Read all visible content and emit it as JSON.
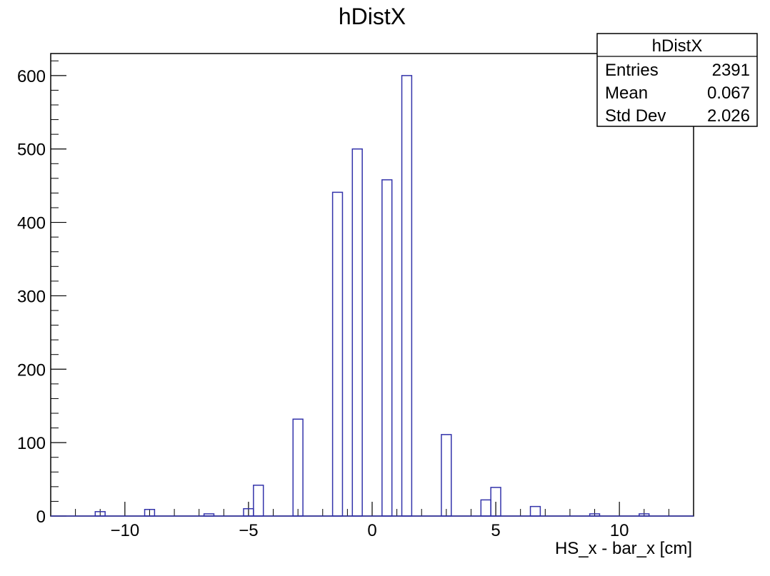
{
  "chart_data": {
    "type": "bar",
    "title": "hDistX",
    "xlabel": "HS_x - bar_x [cm]",
    "ylabel": "",
    "xlim": [
      -13,
      13
    ],
    "ylim": [
      0,
      630
    ],
    "x_ticks": [
      -10,
      -5,
      0,
      5,
      10
    ],
    "y_ticks": [
      0,
      100,
      200,
      300,
      400,
      500,
      600
    ],
    "x_tick_labels": [
      "−10",
      "−5",
      "0",
      "5",
      "10"
    ],
    "y_tick_labels": [
      "0",
      "100",
      "200",
      "300",
      "400",
      "500",
      "600"
    ],
    "grid": false,
    "line_color": "#3333aa",
    "bins": [
      {
        "x0": -11.2,
        "x1": -10.8,
        "value": 6
      },
      {
        "x0": -9.2,
        "x1": -8.8,
        "value": 9
      },
      {
        "x0": -6.8,
        "x1": -6.4,
        "value": 3
      },
      {
        "x0": -5.2,
        "x1": -4.8,
        "value": 10
      },
      {
        "x0": -4.8,
        "x1": -4.4,
        "value": 42
      },
      {
        "x0": -3.2,
        "x1": -2.8,
        "value": 132
      },
      {
        "x0": -1.6,
        "x1": -1.2,
        "value": 441
      },
      {
        "x0": -0.8,
        "x1": -0.4,
        "value": 500
      },
      {
        "x0": 0.4,
        "x1": 0.8,
        "value": 458
      },
      {
        "x0": 1.2,
        "x1": 1.6,
        "value": 600
      },
      {
        "x0": 2.8,
        "x1": 3.2,
        "value": 111
      },
      {
        "x0": 4.4,
        "x1": 4.8,
        "value": 22
      },
      {
        "x0": 4.8,
        "x1": 5.2,
        "value": 39
      },
      {
        "x0": 6.4,
        "x1": 6.8,
        "value": 13
      },
      {
        "x0": 8.8,
        "x1": 9.2,
        "value": 3
      },
      {
        "x0": 10.8,
        "x1": 11.2,
        "value": 3
      }
    ]
  },
  "stats": {
    "title": "hDistX",
    "rows": [
      {
        "label": "Entries",
        "value": "2391"
      },
      {
        "label": "Mean",
        "value": "0.067"
      },
      {
        "label": "Std Dev",
        "value": "2.026"
      }
    ]
  }
}
